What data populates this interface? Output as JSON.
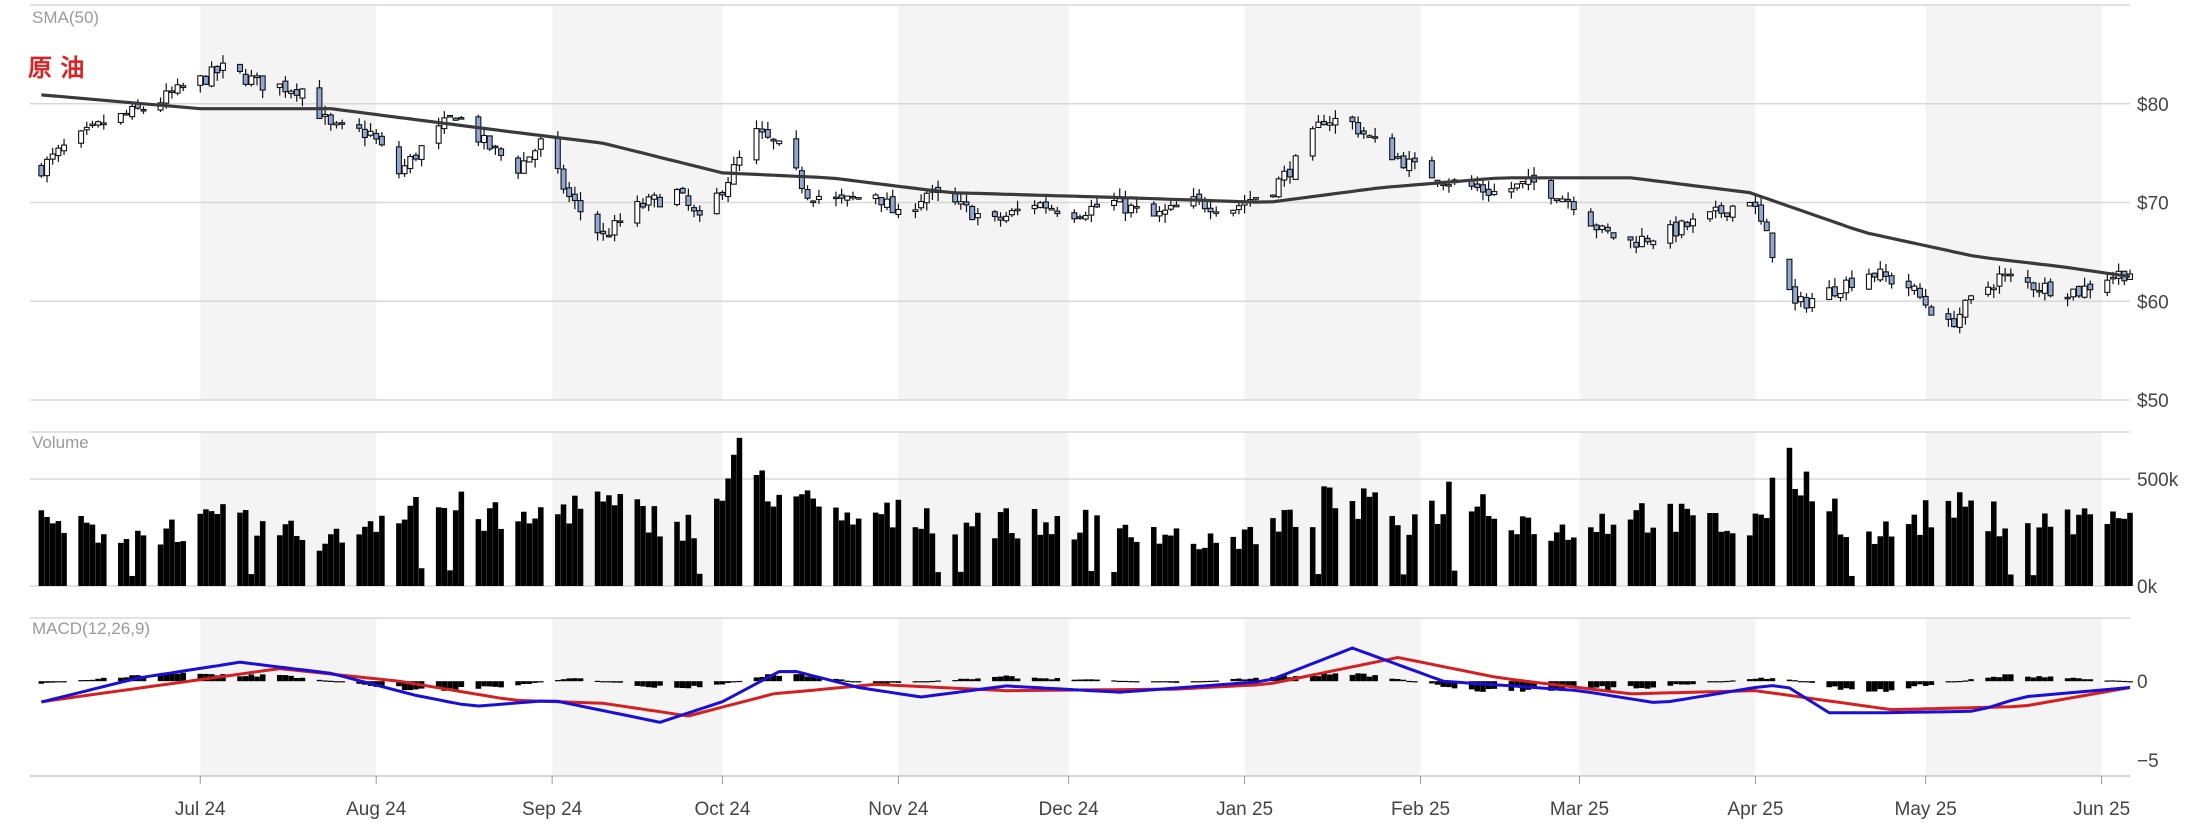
{
  "chart_data": {
    "type": "candlestick",
    "title": "原 油",
    "x_axis": {
      "tick_labels": [
        "Jul 24",
        "Aug 24",
        "Sep 24",
        "Oct 24",
        "Nov 24",
        "Dec 24",
        "Jan 25",
        "Feb 25",
        "Mar 25",
        "Apr 25",
        "May 25",
        "Jun 25"
      ],
      "range": [
        "2024-06-01",
        "2025-06-06"
      ]
    },
    "panels": [
      {
        "name": "price",
        "label": "SMA(50)",
        "y_ticks": [
          80,
          70,
          60,
          50
        ],
        "y_tick_labels": [
          "$80",
          "$70",
          "$60",
          "$50"
        ],
        "y_range": [
          50,
          90
        ],
        "series": [
          {
            "name": "price",
            "kind": "candlestick",
            "keypoints": [
              [
                "2024-06-03",
                73.5
              ],
              [
                "2024-06-07",
                75.5
              ],
              [
                "2024-06-14",
                78.0
              ],
              [
                "2024-06-21",
                79.5
              ],
              [
                "2024-06-28",
                81.5
              ],
              [
                "2024-07-05",
                83.5
              ],
              [
                "2024-07-12",
                82.0
              ],
              [
                "2024-07-19",
                81.5
              ],
              [
                "2024-07-24",
                77.5
              ],
              [
                "2024-07-31",
                77.0
              ],
              [
                "2024-08-05",
                73.0
              ],
              [
                "2024-08-09",
                75.5
              ],
              [
                "2024-08-15",
                79.0
              ],
              [
                "2024-08-20",
                76.0
              ],
              [
                "2024-08-26",
                73.5
              ],
              [
                "2024-08-30",
                76.0
              ],
              [
                "2024-09-04",
                70.5
              ],
              [
                "2024-09-10",
                66.5
              ],
              [
                "2024-09-16",
                69.5
              ],
              [
                "2024-09-23",
                71.0
              ],
              [
                "2024-09-27",
                68.0
              ],
              [
                "2024-10-01",
                71.5
              ],
              [
                "2024-10-07",
                77.0
              ],
              [
                "2024-10-11",
                75.5
              ],
              [
                "2024-10-16",
                71.0
              ],
              [
                "2024-10-22",
                70.0
              ],
              [
                "2024-10-28",
                71.0
              ],
              [
                "2024-11-01",
                68.5
              ],
              [
                "2024-11-06",
                71.0
              ],
              [
                "2024-11-12",
                69.5
              ],
              [
                "2024-11-18",
                68.0
              ],
              [
                "2024-11-25",
                70.0
              ],
              [
                "2024-12-02",
                69.0
              ],
              [
                "2024-12-09",
                70.0
              ],
              [
                "2024-12-16",
                68.5
              ],
              [
                "2024-12-23",
                70.0
              ],
              [
                "2024-12-30",
                69.5
              ],
              [
                "2025-01-06",
                71.5
              ],
              [
                "2025-01-10",
                74.0
              ],
              [
                "2025-01-15",
                78.5
              ],
              [
                "2025-01-20",
                78.0
              ],
              [
                "2025-01-24",
                76.0
              ],
              [
                "2025-01-31",
                73.5
              ],
              [
                "2025-02-07",
                72.0
              ],
              [
                "2025-02-14",
                71.0
              ],
              [
                "2025-02-21",
                72.0
              ],
              [
                "2025-02-28",
                70.0
              ],
              [
                "2025-03-05",
                67.0
              ],
              [
                "2025-03-10",
                66.0
              ],
              [
                "2025-03-17",
                67.0
              ],
              [
                "2025-03-24",
                68.5
              ],
              [
                "2025-03-31",
                70.5
              ],
              [
                "2025-04-03",
                66.5
              ],
              [
                "2025-04-08",
                59.5
              ],
              [
                "2025-04-14",
                61.0
              ],
              [
                "2025-04-21",
                63.0
              ],
              [
                "2025-04-28",
                61.5
              ],
              [
                "2025-05-05",
                57.5
              ],
              [
                "2025-05-09",
                60.0
              ],
              [
                "2025-05-14",
                62.5
              ],
              [
                "2025-05-21",
                61.5
              ],
              [
                "2025-05-28",
                61.0
              ],
              [
                "2025-06-02",
                62.5
              ],
              [
                "2025-06-06",
                63.0
              ]
            ]
          },
          {
            "name": "SMA(50)",
            "kind": "line",
            "color": "#3a3a3a",
            "keypoints": [
              [
                "2024-06-01",
                81.0
              ],
              [
                "2024-07-01",
                79.5
              ],
              [
                "2024-07-24",
                79.5
              ],
              [
                "2024-08-20",
                77.5
              ],
              [
                "2024-09-10",
                76.0
              ],
              [
                "2024-10-01",
                73.0
              ],
              [
                "2024-10-20",
                72.5
              ],
              [
                "2024-11-10",
                71.0
              ],
              [
                "2024-12-10",
                70.5
              ],
              [
                "2025-01-05",
                70.0
              ],
              [
                "2025-01-25",
                71.5
              ],
              [
                "2025-02-15",
                72.5
              ],
              [
                "2025-03-10",
                72.5
              ],
              [
                "2025-03-31",
                71.0
              ],
              [
                "2025-04-20",
                67.0
              ],
              [
                "2025-05-10",
                64.5
              ],
              [
                "2025-05-25",
                63.5
              ],
              [
                "2025-06-06",
                62.5
              ]
            ]
          }
        ]
      },
      {
        "name": "volume",
        "label": "Volume",
        "y_tick_labels": [
          "500k",
          "0k"
        ],
        "y_ticks": [
          500,
          0
        ],
        "y_range": [
          0,
          720
        ],
        "series": [
          {
            "name": "Volume",
            "kind": "bar",
            "unit": "k",
            "keypoints": [
              [
                "2024-06-03",
                300
              ],
              [
                "2024-06-20",
                250
              ],
              [
                "2024-07-05",
                320
              ],
              [
                "2024-07-24",
                220
              ],
              [
                "2024-08-08",
                430
              ],
              [
                "2024-08-26",
                300
              ],
              [
                "2024-09-06",
                420
              ],
              [
                "2024-09-27",
                280
              ],
              [
                "2024-10-04",
                600
              ],
              [
                "2024-10-20",
                320
              ],
              [
                "2024-11-05",
                350
              ],
              [
                "2024-11-25",
                300
              ],
              [
                "2024-12-10",
                310
              ],
              [
                "2024-12-27",
                200
              ],
              [
                "2025-01-10",
                320
              ],
              [
                "2025-01-17",
                420
              ],
              [
                "2025-01-31",
                320
              ],
              [
                "2025-02-07",
                460
              ],
              [
                "2025-02-25",
                260
              ],
              [
                "2025-03-10",
                360
              ],
              [
                "2025-03-31",
                280
              ],
              [
                "2025-04-08",
                580
              ],
              [
                "2025-04-20",
                220
              ],
              [
                "2025-05-05",
                380
              ],
              [
                "2025-05-20",
                300
              ],
              [
                "2025-06-06",
                360
              ]
            ]
          }
        ]
      },
      {
        "name": "macd",
        "label": "MACD(12,26,9)",
        "y_ticks": [
          0,
          -5
        ],
        "y_tick_labels": [
          "0",
          "−5"
        ],
        "y_range": [
          -6,
          4
        ],
        "series": [
          {
            "name": "MACD",
            "kind": "line",
            "color": "#1a0fd8",
            "keypoints": [
              [
                "2024-06-01",
                -1.5
              ],
              [
                "2024-06-20",
                0.2
              ],
              [
                "2024-07-08",
                1.2
              ],
              [
                "2024-07-24",
                0.5
              ],
              [
                "2024-08-08",
                -0.9
              ],
              [
                "2024-08-18",
                -1.6
              ],
              [
                "2024-09-01",
                -1.2
              ],
              [
                "2024-09-20",
                -2.6
              ],
              [
                "2024-10-01",
                -1.3
              ],
              [
                "2024-10-12",
                0.8
              ],
              [
                "2024-10-25",
                -0.4
              ],
              [
                "2024-11-05",
                -1.0
              ],
              [
                "2024-11-20",
                -0.3
              ],
              [
                "2024-12-10",
                -0.7
              ],
              [
                "2025-01-05",
                0.0
              ],
              [
                "2025-01-20",
                2.1
              ],
              [
                "2025-02-05",
                0.0
              ],
              [
                "2025-03-01",
                -0.6
              ],
              [
                "2025-03-15",
                -1.4
              ],
              [
                "2025-04-01",
                -0.4
              ],
              [
                "2025-04-06",
                -0.2
              ],
              [
                "2025-04-14",
                -2.0
              ],
              [
                "2025-04-23",
                -2.0
              ],
              [
                "2025-05-10",
                -1.9
              ],
              [
                "2025-05-18",
                -1.0
              ],
              [
                "2025-06-06",
                -0.4
              ]
            ]
          },
          {
            "name": "Signal",
            "kind": "line",
            "color": "#d42020",
            "keypoints": [
              [
                "2024-06-01",
                -1.4
              ],
              [
                "2024-06-25",
                -0.2
              ],
              [
                "2024-07-15",
                0.8
              ],
              [
                "2024-08-05",
                0.0
              ],
              [
                "2024-08-25",
                -1.2
              ],
              [
                "2024-09-10",
                -1.4
              ],
              [
                "2024-09-25",
                -2.2
              ],
              [
                "2024-10-10",
                -0.8
              ],
              [
                "2024-10-28",
                -0.2
              ],
              [
                "2024-11-20",
                -0.6
              ],
              [
                "2024-12-20",
                -0.5
              ],
              [
                "2025-01-05",
                -0.2
              ],
              [
                "2025-01-28",
                1.5
              ],
              [
                "2025-02-15",
                0.2
              ],
              [
                "2025-03-10",
                -0.8
              ],
              [
                "2025-04-01",
                -0.6
              ],
              [
                "2025-04-25",
                -1.8
              ],
              [
                "2025-05-18",
                -1.6
              ],
              [
                "2025-06-06",
                -0.4
              ]
            ]
          },
          {
            "name": "Histogram",
            "kind": "bar",
            "color": "#000000",
            "keypoints": [
              [
                "2024-06-01",
                -0.2
              ],
              [
                "2024-06-25",
                0.5
              ],
              [
                "2024-07-15",
                0.4
              ],
              [
                "2024-08-08",
                -0.6
              ],
              [
                "2024-08-20",
                -0.5
              ],
              [
                "2024-09-05",
                0.2
              ],
              [
                "2024-09-22",
                -0.5
              ],
              [
                "2024-10-01",
                -0.2
              ],
              [
                "2024-10-12",
                0.6
              ],
              [
                "2024-10-28",
                -0.2
              ],
              [
                "2024-11-20",
                0.3
              ],
              [
                "2024-12-20",
                -0.1
              ],
              [
                "2025-01-20",
                0.6
              ],
              [
                "2025-02-10",
                -0.6
              ],
              [
                "2025-03-10",
                -0.5
              ],
              [
                "2025-04-05",
                0.3
              ],
              [
                "2025-04-20",
                -0.8
              ],
              [
                "2025-05-15",
                0.4
              ],
              [
                "2025-06-06",
                0.0
              ]
            ]
          }
        ]
      }
    ],
    "shaded_months": true,
    "grid": true
  }
}
